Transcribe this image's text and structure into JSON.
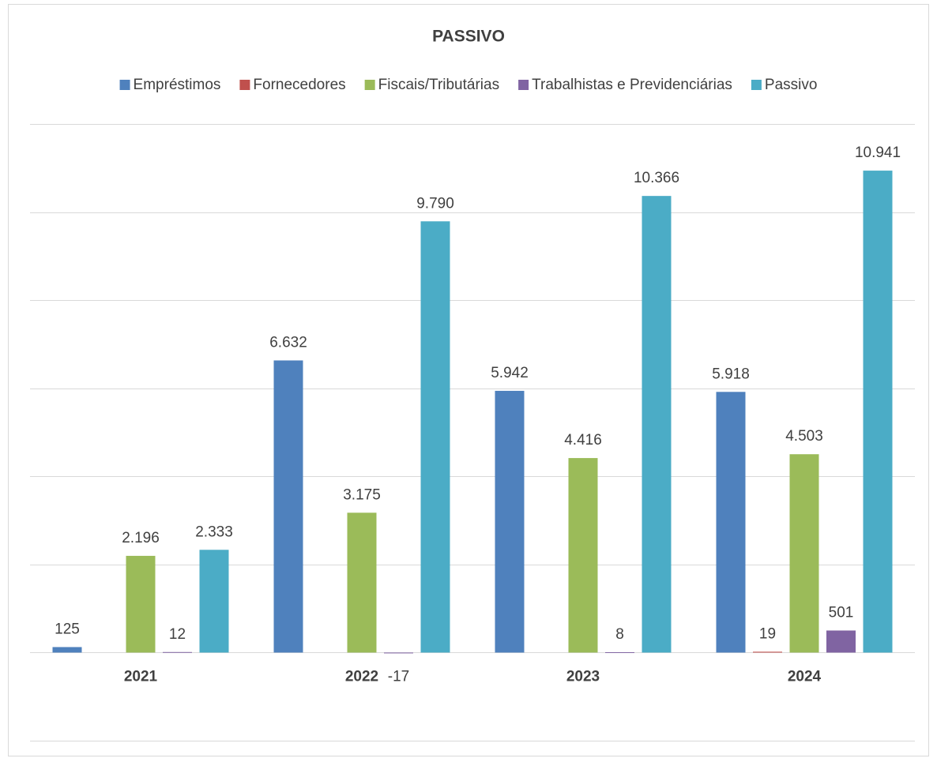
{
  "chart_data": {
    "type": "bar",
    "title": "PASSIVO",
    "categories": [
      "2021",
      "2022",
      "2023",
      "2024"
    ],
    "series": [
      {
        "name": "Empréstimos",
        "color": "#4f81bd",
        "values": [
          125,
          6632,
          5942,
          5918
        ],
        "value_labels": [
          "125",
          "6.632",
          "5.942",
          "5.918"
        ]
      },
      {
        "name": "Fornecedores",
        "color": "#c0504d",
        "values": [
          null,
          null,
          null,
          19
        ],
        "value_labels": [
          null,
          null,
          null,
          "19"
        ]
      },
      {
        "name": "Fiscais/Tributárias",
        "color": "#9bbb59",
        "values": [
          2196,
          3175,
          4416,
          4503
        ],
        "value_labels": [
          "2.196",
          "3.175",
          "4.416",
          "4.503"
        ]
      },
      {
        "name": "Trabalhistas e Previdenciárias",
        "color": "#8064a2",
        "values": [
          12,
          -17,
          8,
          501
        ],
        "value_labels": [
          "12",
          "-17",
          "8",
          "501"
        ]
      },
      {
        "name": "Passivo",
        "color": "#4bacc6",
        "values": [
          2333,
          9790,
          10366,
          10941
        ],
        "value_labels": [
          "2.333",
          "9.790",
          "10.366",
          "10.941"
        ]
      }
    ],
    "ylim": [
      -2000,
      12000
    ],
    "yticks": [
      -2000,
      0,
      2000,
      4000,
      6000,
      8000,
      10000,
      12000
    ],
    "grid": true,
    "legend": "top"
  }
}
